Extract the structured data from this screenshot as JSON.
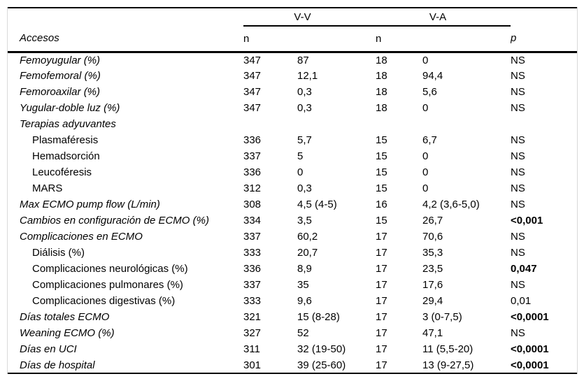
{
  "colors": {
    "background": "#ffffff",
    "rule": "#000000",
    "frame_line": "#d9d9d9",
    "text": "#000000"
  },
  "table": {
    "header": {
      "col_label": "Accesos",
      "group_vv": "V-V",
      "group_va": "V-A",
      "n_vv": "n",
      "n_va": "n",
      "p": "p"
    },
    "rows": [
      {
        "label": "Femoyugular (%)",
        "italic": true,
        "indent": false,
        "n1": "347",
        "v1": "87",
        "n2": "18",
        "v2": "0",
        "p": "NS",
        "p_bold": false
      },
      {
        "label": "Femofemoral (%)",
        "italic": true,
        "indent": false,
        "n1": "347",
        "v1": "12,1",
        "n2": "18",
        "v2": "94,4",
        "p": "NS",
        "p_bold": false
      },
      {
        "label": "Femoroaxilar (%)",
        "italic": true,
        "indent": false,
        "n1": "347",
        "v1": "0,3",
        "n2": "18",
        "v2": "5,6",
        "p": "NS",
        "p_bold": false
      },
      {
        "label": "Yugular-doble luz (%)",
        "italic": true,
        "indent": false,
        "n1": "347",
        "v1": "0,3",
        "n2": "18",
        "v2": "0",
        "p": "NS",
        "p_bold": false
      },
      {
        "label": "Terapias adyuvantes",
        "italic": true,
        "indent": false,
        "n1": "",
        "v1": "",
        "n2": "",
        "v2": "",
        "p": "",
        "p_bold": false
      },
      {
        "label": "Plasmaféresis",
        "italic": false,
        "indent": true,
        "n1": "336",
        "v1": "5,7",
        "n2": "15",
        "v2": "6,7",
        "p": "NS",
        "p_bold": false
      },
      {
        "label": "Hemadsorción",
        "italic": false,
        "indent": true,
        "n1": "337",
        "v1": "5",
        "n2": "15",
        "v2": "0",
        "p": "NS",
        "p_bold": false
      },
      {
        "label": "Leucoféresis",
        "italic": false,
        "indent": true,
        "n1": "336",
        "v1": "0",
        "n2": "15",
        "v2": "0",
        "p": "NS",
        "p_bold": false
      },
      {
        "label": "MARS",
        "italic": false,
        "indent": true,
        "n1": "312",
        "v1": "0,3",
        "n2": "15",
        "v2": "0",
        "p": "NS",
        "p_bold": false
      },
      {
        "label": "Max ECMO pump flow (L/min)",
        "italic": true,
        "indent": false,
        "n1": "308",
        "v1": "4,5 (4-5)",
        "n2": "16",
        "v2": "4,2 (3,6-5,0)",
        "p": "NS",
        "p_bold": false
      },
      {
        "label": "Cambios en configuración de ECMO (%)",
        "italic": true,
        "indent": false,
        "n1": "334",
        "v1": "3,5",
        "n2": "15",
        "v2": "26,7",
        "p": "<0,001",
        "p_bold": true
      },
      {
        "label": "Complicaciones en ECMO",
        "italic": true,
        "indent": false,
        "n1": "337",
        "v1": "60,2",
        "n2": "17",
        "v2": "70,6",
        "p": "NS",
        "p_bold": false
      },
      {
        "label": "Diálisis (%)",
        "italic": false,
        "indent": true,
        "n1": "333",
        "v1": "20,7",
        "n2": "17",
        "v2": "35,3",
        "p": "NS",
        "p_bold": false
      },
      {
        "label": "Complicaciones neurológicas (%)",
        "italic": false,
        "indent": true,
        "n1": "336",
        "v1": "8,9",
        "n2": "17",
        "v2": "23,5",
        "p": "0,047",
        "p_bold": true
      },
      {
        "label": "Complicaciones pulmonares (%)",
        "italic": false,
        "indent": true,
        "n1": "337",
        "v1": "35",
        "n2": "17",
        "v2": "17,6",
        "p": "NS",
        "p_bold": false
      },
      {
        "label": "Complicaciones digestivas (%)",
        "italic": false,
        "indent": true,
        "n1": "333",
        "v1": "9,6",
        "n2": "17",
        "v2": "29,4",
        "p": "0,01",
        "p_bold": false
      },
      {
        "label": "Días totales ECMO",
        "italic": true,
        "indent": false,
        "n1": "321",
        "v1": "15 (8-28)",
        "n2": "17",
        "v2": "3 (0-7,5)",
        "p": "<0,0001",
        "p_bold": true
      },
      {
        "label": "Weaning ECMO (%)",
        "italic": true,
        "indent": false,
        "n1": "327",
        "v1": "52",
        "n2": "17",
        "v2": "47,1",
        "p": "NS",
        "p_bold": false
      },
      {
        "label": "Días en UCI",
        "italic": true,
        "indent": false,
        "n1": "311",
        "v1": "32 (19-50)",
        "n2": "17",
        "v2": "11 (5,5-20)",
        "p": "<0,0001",
        "p_bold": true
      },
      {
        "label": "Días de hospital",
        "italic": true,
        "indent": false,
        "n1": "301",
        "v1": "39 (25-60)",
        "n2": "17",
        "v2": "13 (9-27,5)",
        "p": "<0,0001",
        "p_bold": true
      }
    ]
  }
}
